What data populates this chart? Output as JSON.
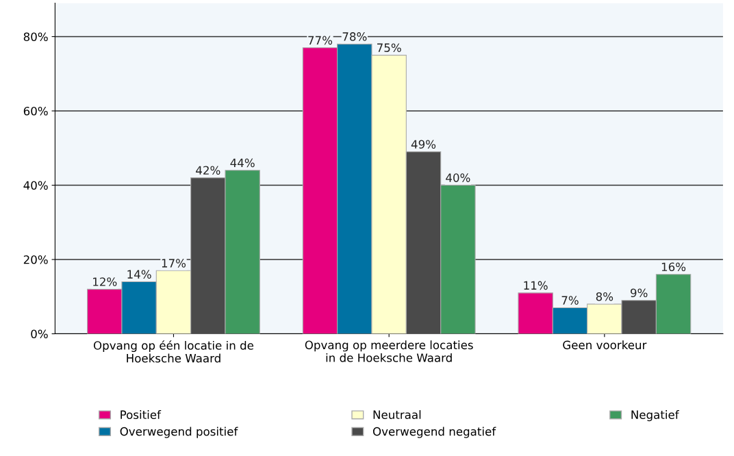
{
  "chart_data": {
    "type": "bar",
    "categories": [
      "Opvang op één locatie in de Hoeksche Waard",
      "Opvang op meerdere locaties in de Hoeksche Waard",
      "Geen voorkeur"
    ],
    "series": [
      {
        "name": "Positief",
        "color": "#e6007e",
        "values": [
          12,
          77,
          11
        ],
        "value_labels": [
          "12%",
          "77%",
          "11%"
        ]
      },
      {
        "name": "Overwegend positief",
        "color": "#0072a3",
        "values": [
          14,
          78,
          7
        ],
        "value_labels": [
          "14%",
          "78%",
          "7%"
        ]
      },
      {
        "name": "Neutraal",
        "color": "#ffffcc",
        "values": [
          17,
          75,
          8
        ],
        "value_labels": [
          "17%",
          "75%",
          "8%"
        ]
      },
      {
        "name": "Overwegend negatief",
        "color": "#4a4a4a",
        "values": [
          42,
          49,
          9
        ],
        "value_labels": [
          "42%",
          "49%",
          "9%"
        ]
      },
      {
        "name": "Negatief",
        "color": "#3f9a5f",
        "values": [
          44,
          40,
          16
        ],
        "value_labels": [
          "44%",
          "40%",
          "16%"
        ]
      }
    ],
    "ylim": [
      0,
      89
    ],
    "yticks": [
      {
        "value": 0,
        "label": "0%"
      },
      {
        "value": 20,
        "label": "20%"
      },
      {
        "value": 40,
        "label": "40%"
      },
      {
        "value": 60,
        "label": "60%"
      },
      {
        "value": 80,
        "label": "80%"
      }
    ],
    "grid": "y",
    "legend": "bottom"
  }
}
